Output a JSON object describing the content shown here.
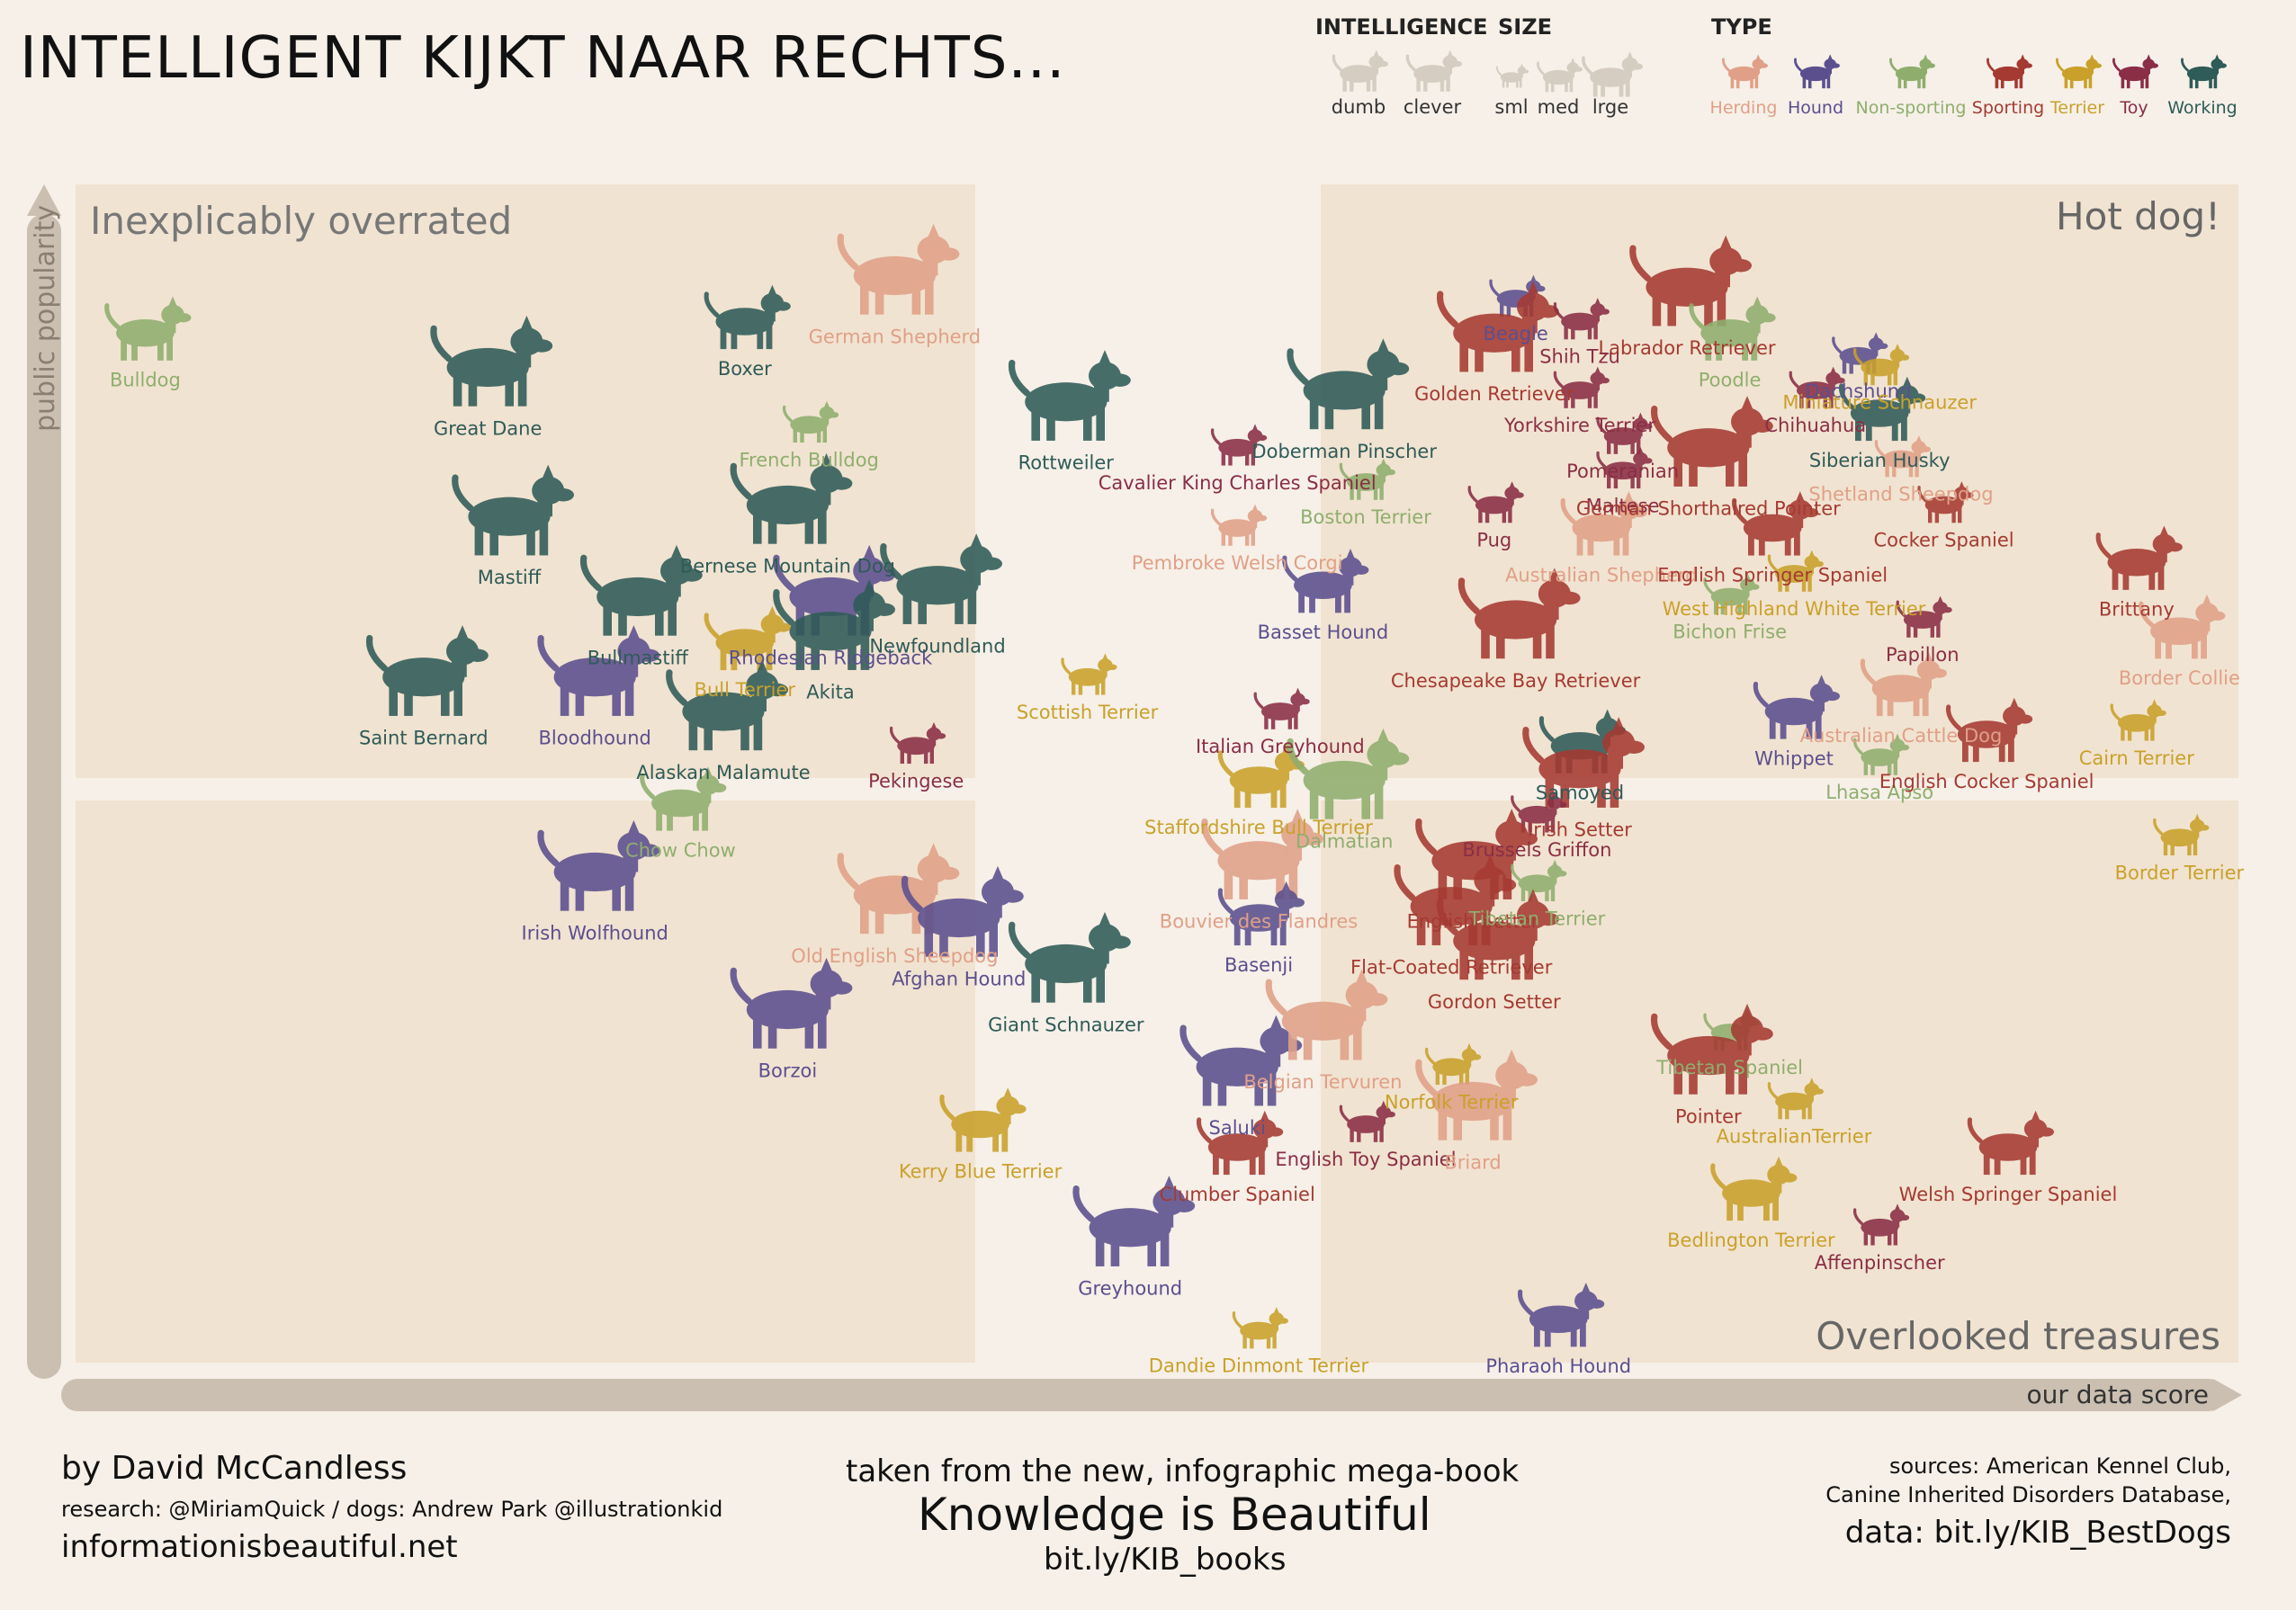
{
  "title": "INTELLIGENT KIJKT NAAR RECHTS...",
  "legend": {
    "intelligence": {
      "heading": "INTELLIGENCE",
      "items": [
        "dumb",
        "clever"
      ]
    },
    "size": {
      "heading": "SIZE",
      "items": [
        "sml",
        "med",
        "lrge"
      ]
    },
    "type": {
      "heading": "TYPE",
      "items": [
        {
          "name": "Herding",
          "color": "#e0a088"
        },
        {
          "name": "Hound",
          "color": "#5b4f8e"
        },
        {
          "name": "Non-sporting",
          "color": "#8fae6e"
        },
        {
          "name": "Sporting",
          "color": "#a53a32"
        },
        {
          "name": "Terrier",
          "color": "#c9a12a"
        },
        {
          "name": "Toy",
          "color": "#8a2e45"
        },
        {
          "name": "Working",
          "color": "#2f5b58"
        }
      ]
    }
  },
  "quadrants": {
    "top_left": "Inexplicably overrated",
    "top_right": "Hot dog!",
    "bottom_right": "Overlooked treasures"
  },
  "footer": {
    "author": "by David McCandless",
    "research": "research: @MiriamQuick / dogs: Andrew Park @illustrationkid",
    "site": "informationisbeautiful.net",
    "book_intro": "taken from the new, infographic mega-book",
    "book_title": "Knowledge is Beautiful",
    "book_link": "bit.ly/KIB_books",
    "sources_line1": "sources: American Kennel Club,",
    "sources_line2": "Canine Inherited Disorders Database,",
    "data_link": "data: bit.ly/KIB_BestDogs"
  },
  "chart_data": {
    "type": "scatter",
    "xlabel": "our data score",
    "ylabel": "public popularity",
    "xlim": [
      0,
      100
    ],
    "ylim": [
      0,
      100
    ],
    "grid": false,
    "legend_position": "top-right",
    "points": [
      {
        "name": "Bulldog",
        "x": 3,
        "y": 89,
        "type": "Non-sporting",
        "size": "med",
        "intelligence": "dumb"
      },
      {
        "name": "Great Dane",
        "x": 19,
        "y": 86,
        "type": "Working",
        "size": "lrge",
        "intelligence": "dumb"
      },
      {
        "name": "Mastiff",
        "x": 20,
        "y": 73,
        "type": "Working",
        "size": "lrge",
        "intelligence": "dumb"
      },
      {
        "name": "Bullmastiff",
        "x": 26,
        "y": 66,
        "type": "Working",
        "size": "lrge",
        "intelligence": "dumb"
      },
      {
        "name": "Saint Bernard",
        "x": 16,
        "y": 59,
        "type": "Working",
        "size": "lrge",
        "intelligence": "dumb"
      },
      {
        "name": "Bloodhound",
        "x": 24,
        "y": 59,
        "type": "Hound",
        "size": "lrge",
        "intelligence": "dumb"
      },
      {
        "name": "Boxer",
        "x": 31,
        "y": 90,
        "type": "Working",
        "size": "med",
        "intelligence": "dumb"
      },
      {
        "name": "German Shepherd",
        "x": 38,
        "y": 94,
        "type": "Herding",
        "size": "lrge",
        "intelligence": "clever"
      },
      {
        "name": "French Bulldog",
        "x": 34,
        "y": 81,
        "type": "Non-sporting",
        "size": "sml",
        "intelligence": "dumb"
      },
      {
        "name": "Bernese Mountain Dog",
        "x": 33,
        "y": 74,
        "type": "Working",
        "size": "lrge",
        "intelligence": "dumb"
      },
      {
        "name": "Rhodesian Ridgeback",
        "x": 35,
        "y": 66,
        "type": "Hound",
        "size": "lrge",
        "intelligence": "dumb"
      },
      {
        "name": "Newfoundland",
        "x": 40,
        "y": 67,
        "type": "Working",
        "size": "lrge",
        "intelligence": "dumb"
      },
      {
        "name": "Akita",
        "x": 35,
        "y": 63,
        "type": "Working",
        "size": "lrge",
        "intelligence": "dumb"
      },
      {
        "name": "Bull Terrier",
        "x": 31,
        "y": 62,
        "type": "Terrier",
        "size": "med",
        "intelligence": "dumb"
      },
      {
        "name": "Alaskan Malamute",
        "x": 30,
        "y": 56,
        "type": "Working",
        "size": "lrge",
        "intelligence": "dumb"
      },
      {
        "name": "Chow Chow",
        "x": 28,
        "y": 48,
        "type": "Non-sporting",
        "size": "med",
        "intelligence": "dumb"
      },
      {
        "name": "Pekingese",
        "x": 39,
        "y": 53,
        "type": "Toy",
        "size": "sml",
        "intelligence": "dumb"
      },
      {
        "name": "Rottweiler",
        "x": 46,
        "y": 83,
        "type": "Working",
        "size": "lrge",
        "intelligence": "clever"
      },
      {
        "name": "Scottish Terrier",
        "x": 47,
        "y": 59,
        "type": "Terrier",
        "size": "sml",
        "intelligence": "dumb"
      },
      {
        "name": "Irish Wolfhound",
        "x": 24,
        "y": 42,
        "type": "Hound",
        "size": "lrge",
        "intelligence": "dumb"
      },
      {
        "name": "Old English Sheepdog",
        "x": 38,
        "y": 40,
        "type": "Herding",
        "size": "lrge",
        "intelligence": "dumb"
      },
      {
        "name": "Afghan Hound",
        "x": 41,
        "y": 38,
        "type": "Hound",
        "size": "lrge",
        "intelligence": "dumb"
      },
      {
        "name": "Giant Schnauzer",
        "x": 46,
        "y": 34,
        "type": "Working",
        "size": "lrge",
        "intelligence": "clever"
      },
      {
        "name": "Borzoi",
        "x": 33,
        "y": 30,
        "type": "Hound",
        "size": "lrge",
        "intelligence": "dumb"
      },
      {
        "name": "Kerry Blue Terrier",
        "x": 42,
        "y": 20,
        "type": "Terrier",
        "size": "med",
        "intelligence": "clever"
      },
      {
        "name": "Greyhound",
        "x": 49,
        "y": 11,
        "type": "Hound",
        "size": "lrge",
        "intelligence": "dumb"
      },
      {
        "name": "Doberman Pinscher",
        "x": 59,
        "y": 84,
        "type": "Working",
        "size": "lrge",
        "intelligence": "clever"
      },
      {
        "name": "Cavalier King Charles Spaniel",
        "x": 54,
        "y": 79,
        "type": "Toy",
        "size": "sml",
        "intelligence": "dumb"
      },
      {
        "name": "Pembroke Welsh Corgi",
        "x": 54,
        "y": 72,
        "type": "Herding",
        "size": "sml",
        "intelligence": "clever"
      },
      {
        "name": "Boston Terrier",
        "x": 60,
        "y": 76,
        "type": "Non-sporting",
        "size": "sml",
        "intelligence": "dumb"
      },
      {
        "name": "Basset Hound",
        "x": 58,
        "y": 67,
        "type": "Hound",
        "size": "med",
        "intelligence": "dumb"
      },
      {
        "name": "Italian Greyhound",
        "x": 56,
        "y": 56,
        "type": "Toy",
        "size": "sml",
        "intelligence": "dumb"
      },
      {
        "name": "Staffordshire Bull Terrier",
        "x": 55,
        "y": 50,
        "type": "Terrier",
        "size": "med",
        "intelligence": "dumb"
      },
      {
        "name": "Dalmatian",
        "x": 59,
        "y": 50,
        "type": "Non-sporting",
        "size": "lrge",
        "intelligence": "clever"
      },
      {
        "name": "Bouvier des Flandres",
        "x": 55,
        "y": 43,
        "type": "Herding",
        "size": "lrge",
        "intelligence": "clever"
      },
      {
        "name": "Basenji",
        "x": 55,
        "y": 38,
        "type": "Hound",
        "size": "med",
        "intelligence": "dumb"
      },
      {
        "name": "Saluki",
        "x": 54,
        "y": 25,
        "type": "Hound",
        "size": "lrge",
        "intelligence": "dumb"
      },
      {
        "name": "Belgian Tervuren",
        "x": 58,
        "y": 29,
        "type": "Herding",
        "size": "lrge",
        "intelligence": "clever"
      },
      {
        "name": "Clumber Spaniel",
        "x": 54,
        "y": 18,
        "type": "Sporting",
        "size": "med",
        "intelligence": "dumb"
      },
      {
        "name": "English Toy Spaniel",
        "x": 60,
        "y": 20,
        "type": "Toy",
        "size": "sml",
        "intelligence": "dumb"
      },
      {
        "name": "Dandie Dinmont Terrier",
        "x": 55,
        "y": 2,
        "type": "Terrier",
        "size": "sml",
        "intelligence": "dumb"
      },
      {
        "name": "Beagle",
        "x": 67,
        "y": 92,
        "type": "Hound",
        "size": "sml",
        "intelligence": "dumb"
      },
      {
        "name": "Labrador Retriever",
        "x": 75,
        "y": 93,
        "type": "Sporting",
        "size": "lrge",
        "intelligence": "clever"
      },
      {
        "name": "Golden Retriever",
        "x": 66,
        "y": 89,
        "type": "Sporting",
        "size": "lrge",
        "intelligence": "clever"
      },
      {
        "name": "Shih Tzu",
        "x": 70,
        "y": 90,
        "type": "Toy",
        "size": "sml",
        "intelligence": "dumb"
      },
      {
        "name": "Poodle",
        "x": 77,
        "y": 89,
        "type": "Non-sporting",
        "size": "med",
        "intelligence": "clever"
      },
      {
        "name": "Dachshund",
        "x": 83,
        "y": 87,
        "type": "Hound",
        "size": "sml",
        "intelligence": "dumb"
      },
      {
        "name": "Chihuahua",
        "x": 81,
        "y": 84,
        "type": "Toy",
        "size": "sml",
        "intelligence": "dumb"
      },
      {
        "name": "Miniature Schnauzer",
        "x": 84,
        "y": 86,
        "type": "Terrier",
        "size": "sml",
        "intelligence": "clever"
      },
      {
        "name": "Siberian Husky",
        "x": 84,
        "y": 82,
        "type": "Working",
        "size": "med",
        "intelligence": "dumb"
      },
      {
        "name": "Yorkshire Terrier",
        "x": 70,
        "y": 84,
        "type": "Toy",
        "size": "sml",
        "intelligence": "dumb"
      },
      {
        "name": "Pomeranian",
        "x": 72,
        "y": 80,
        "type": "Toy",
        "size": "sml",
        "intelligence": "clever"
      },
      {
        "name": "Pug",
        "x": 66,
        "y": 74,
        "type": "Toy",
        "size": "sml",
        "intelligence": "dumb"
      },
      {
        "name": "Maltese",
        "x": 72,
        "y": 77,
        "type": "Toy",
        "size": "sml",
        "intelligence": "dumb"
      },
      {
        "name": "German Shorthaired Pointer",
        "x": 76,
        "y": 79,
        "type": "Sporting",
        "size": "lrge",
        "intelligence": "clever"
      },
      {
        "name": "Shetland Sheepdog",
        "x": 85,
        "y": 78,
        "type": "Herding",
        "size": "sml",
        "intelligence": "clever"
      },
      {
        "name": "Australian Shepherd",
        "x": 71,
        "y": 72,
        "type": "Herding",
        "size": "med",
        "intelligence": "clever"
      },
      {
        "name": "English Springer Spaniel",
        "x": 79,
        "y": 72,
        "type": "Sporting",
        "size": "med",
        "intelligence": "clever"
      },
      {
        "name": "Cocker Spaniel",
        "x": 87,
        "y": 74,
        "type": "Sporting",
        "size": "sml",
        "intelligence": "clever"
      },
      {
        "name": "West Highland White Terrier",
        "x": 80,
        "y": 68,
        "type": "Terrier",
        "size": "sml",
        "intelligence": "dumb"
      },
      {
        "name": "Brittany",
        "x": 96,
        "y": 69,
        "type": "Sporting",
        "size": "med",
        "intelligence": "clever"
      },
      {
        "name": "Chesapeake Bay Retriever",
        "x": 67,
        "y": 64,
        "type": "Sporting",
        "size": "lrge",
        "intelligence": "clever"
      },
      {
        "name": "Bichon Frise",
        "x": 77,
        "y": 66,
        "type": "Non-sporting",
        "size": "sml",
        "intelligence": "dumb"
      },
      {
        "name": "Papillon",
        "x": 86,
        "y": 64,
        "type": "Toy",
        "size": "sml",
        "intelligence": "clever"
      },
      {
        "name": "Border Collie",
        "x": 98,
        "y": 63,
        "type": "Herding",
        "size": "med",
        "intelligence": "clever"
      },
      {
        "name": "Australian Cattle Dog",
        "x": 85,
        "y": 58,
        "type": "Herding",
        "size": "med",
        "intelligence": "clever"
      },
      {
        "name": "Whippet",
        "x": 80,
        "y": 56,
        "type": "Hound",
        "size": "med",
        "intelligence": "dumb"
      },
      {
        "name": "Lhasa Apso",
        "x": 84,
        "y": 52,
        "type": "Non-sporting",
        "size": "sml",
        "intelligence": "dumb"
      },
      {
        "name": "English Cocker Spaniel",
        "x": 89,
        "y": 54,
        "type": "Sporting",
        "size": "med",
        "intelligence": "clever"
      },
      {
        "name": "Cairn Terrier",
        "x": 96,
        "y": 55,
        "type": "Terrier",
        "size": "sml",
        "intelligence": "clever"
      },
      {
        "name": "Samoyed",
        "x": 70,
        "y": 53,
        "type": "Working",
        "size": "med",
        "intelligence": "clever"
      },
      {
        "name": "Irish Setter",
        "x": 70,
        "y": 51,
        "type": "Sporting",
        "size": "lrge",
        "intelligence": "clever"
      },
      {
        "name": "Brussels Griffon",
        "x": 68,
        "y": 47,
        "type": "Toy",
        "size": "sml",
        "intelligence": "dumb"
      },
      {
        "name": "English Setter",
        "x": 65,
        "y": 43,
        "type": "Sporting",
        "size": "lrge",
        "intelligence": "clever"
      },
      {
        "name": "Tibetan Terrier",
        "x": 68,
        "y": 41,
        "type": "Non-sporting",
        "size": "sml",
        "intelligence": "dumb"
      },
      {
        "name": "Flat-Coated Retriever",
        "x": 64,
        "y": 39,
        "type": "Sporting",
        "size": "lrge",
        "intelligence": "clever"
      },
      {
        "name": "Gordon Setter",
        "x": 66,
        "y": 36,
        "type": "Sporting",
        "size": "lrge",
        "intelligence": "clever"
      },
      {
        "name": "Border Terrier",
        "x": 98,
        "y": 45,
        "type": "Terrier",
        "size": "sml",
        "intelligence": "clever"
      },
      {
        "name": "Tibetan Spaniel",
        "x": 77,
        "y": 28,
        "type": "Non-sporting",
        "size": "sml",
        "intelligence": "clever"
      },
      {
        "name": "Pointer",
        "x": 76,
        "y": 26,
        "type": "Sporting",
        "size": "lrge",
        "intelligence": "clever"
      },
      {
        "name": "AustralianTerrier",
        "x": 80,
        "y": 22,
        "type": "Terrier",
        "size": "sml",
        "intelligence": "clever"
      },
      {
        "name": "Norfolk Terrier",
        "x": 64,
        "y": 25,
        "type": "Terrier",
        "size": "sml",
        "intelligence": "clever"
      },
      {
        "name": "Briard",
        "x": 65,
        "y": 22,
        "type": "Herding",
        "size": "lrge",
        "intelligence": "clever"
      },
      {
        "name": "Welsh Springer Spaniel",
        "x": 90,
        "y": 18,
        "type": "Sporting",
        "size": "med",
        "intelligence": "clever"
      },
      {
        "name": "Bedlington Terrier",
        "x": 78,
        "y": 14,
        "type": "Terrier",
        "size": "med",
        "intelligence": "clever"
      },
      {
        "name": "Affenpinscher",
        "x": 84,
        "y": 11,
        "type": "Toy",
        "size": "sml",
        "intelligence": "clever"
      },
      {
        "name": "Pharaoh Hound",
        "x": 69,
        "y": 3,
        "type": "Hound",
        "size": "med",
        "intelligence": "dumb"
      }
    ]
  }
}
